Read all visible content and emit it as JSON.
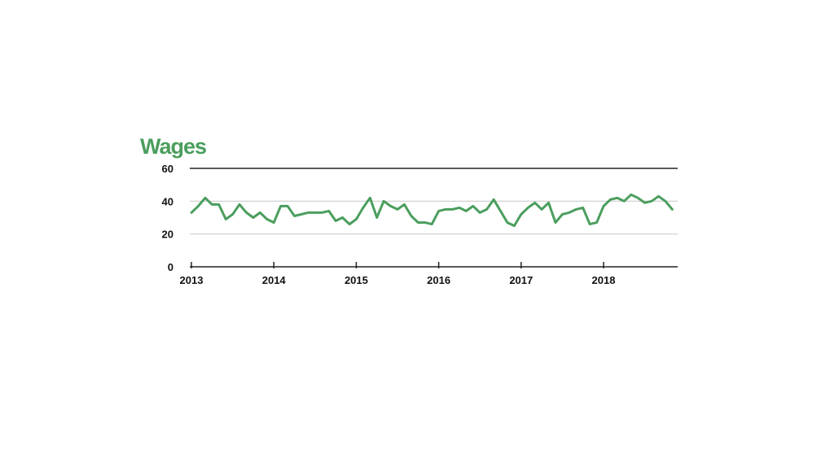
{
  "chart_data": {
    "type": "line",
    "title": "Wages",
    "xlabel": "",
    "ylabel": "",
    "ylim": [
      0,
      60
    ],
    "yticks": [
      0,
      20,
      40,
      60
    ],
    "xticks": [
      "2013",
      "2014",
      "2015",
      "2016",
      "2017",
      "2018"
    ],
    "grid": true,
    "colors": {
      "line": "#4b9e5e",
      "title": "#4b9e5e",
      "grid": "#cccccc",
      "axis": "#222222"
    },
    "series": [
      {
        "points": [
          [
            "2013-01",
            33
          ],
          [
            "2013-02",
            37
          ],
          [
            "2013-03",
            42
          ],
          [
            "2013-04",
            38
          ],
          [
            "2013-05",
            38
          ],
          [
            "2013-06",
            29
          ],
          [
            "2013-07",
            32
          ],
          [
            "2013-08",
            38
          ],
          [
            "2013-09",
            33
          ],
          [
            "2013-10",
            30
          ],
          [
            "2013-11",
            33
          ],
          [
            "2013-12",
            29
          ],
          [
            "2014-01",
            27
          ],
          [
            "2014-02",
            37
          ],
          [
            "2014-03",
            37
          ],
          [
            "2014-04",
            31
          ],
          [
            "2014-05",
            32
          ],
          [
            "2014-06",
            33
          ],
          [
            "2014-07",
            33
          ],
          [
            "2014-08",
            33
          ],
          [
            "2014-09",
            34
          ],
          [
            "2014-10",
            28
          ],
          [
            "2014-11",
            30
          ],
          [
            "2014-12",
            26
          ],
          [
            "2015-01",
            29
          ],
          [
            "2015-02",
            36
          ],
          [
            "2015-03",
            42
          ],
          [
            "2015-04",
            30
          ],
          [
            "2015-05",
            40
          ],
          [
            "2015-06",
            37
          ],
          [
            "2015-07",
            35
          ],
          [
            "2015-08",
            38
          ],
          [
            "2015-09",
            31
          ],
          [
            "2015-10",
            27
          ],
          [
            "2015-11",
            27
          ],
          [
            "2015-12",
            26
          ],
          [
            "2016-01",
            34
          ],
          [
            "2016-02",
            35
          ],
          [
            "2016-03",
            35
          ],
          [
            "2016-04",
            36
          ],
          [
            "2016-05",
            34
          ],
          [
            "2016-06",
            37
          ],
          [
            "2016-07",
            33
          ],
          [
            "2016-08",
            35
          ],
          [
            "2016-09",
            41
          ],
          [
            "2016-10",
            34
          ],
          [
            "2016-11",
            27
          ],
          [
            "2016-12",
            25
          ],
          [
            "2017-01",
            32
          ],
          [
            "2017-02",
            36
          ],
          [
            "2017-03",
            39
          ],
          [
            "2017-04",
            35
          ],
          [
            "2017-05",
            39
          ],
          [
            "2017-06",
            27
          ],
          [
            "2017-07",
            32
          ],
          [
            "2017-08",
            33
          ],
          [
            "2017-09",
            35
          ],
          [
            "2017-10",
            36
          ],
          [
            "2017-11",
            26
          ],
          [
            "2017-12",
            27
          ],
          [
            "2018-01",
            37
          ],
          [
            "2018-02",
            41
          ],
          [
            "2018-03",
            42
          ],
          [
            "2018-04",
            40
          ],
          [
            "2018-05",
            44
          ],
          [
            "2018-06",
            42
          ],
          [
            "2018-07",
            39
          ],
          [
            "2018-08",
            40
          ],
          [
            "2018-09",
            43
          ],
          [
            "2018-10",
            40
          ],
          [
            "2018-11",
            35
          ]
        ]
      }
    ]
  }
}
